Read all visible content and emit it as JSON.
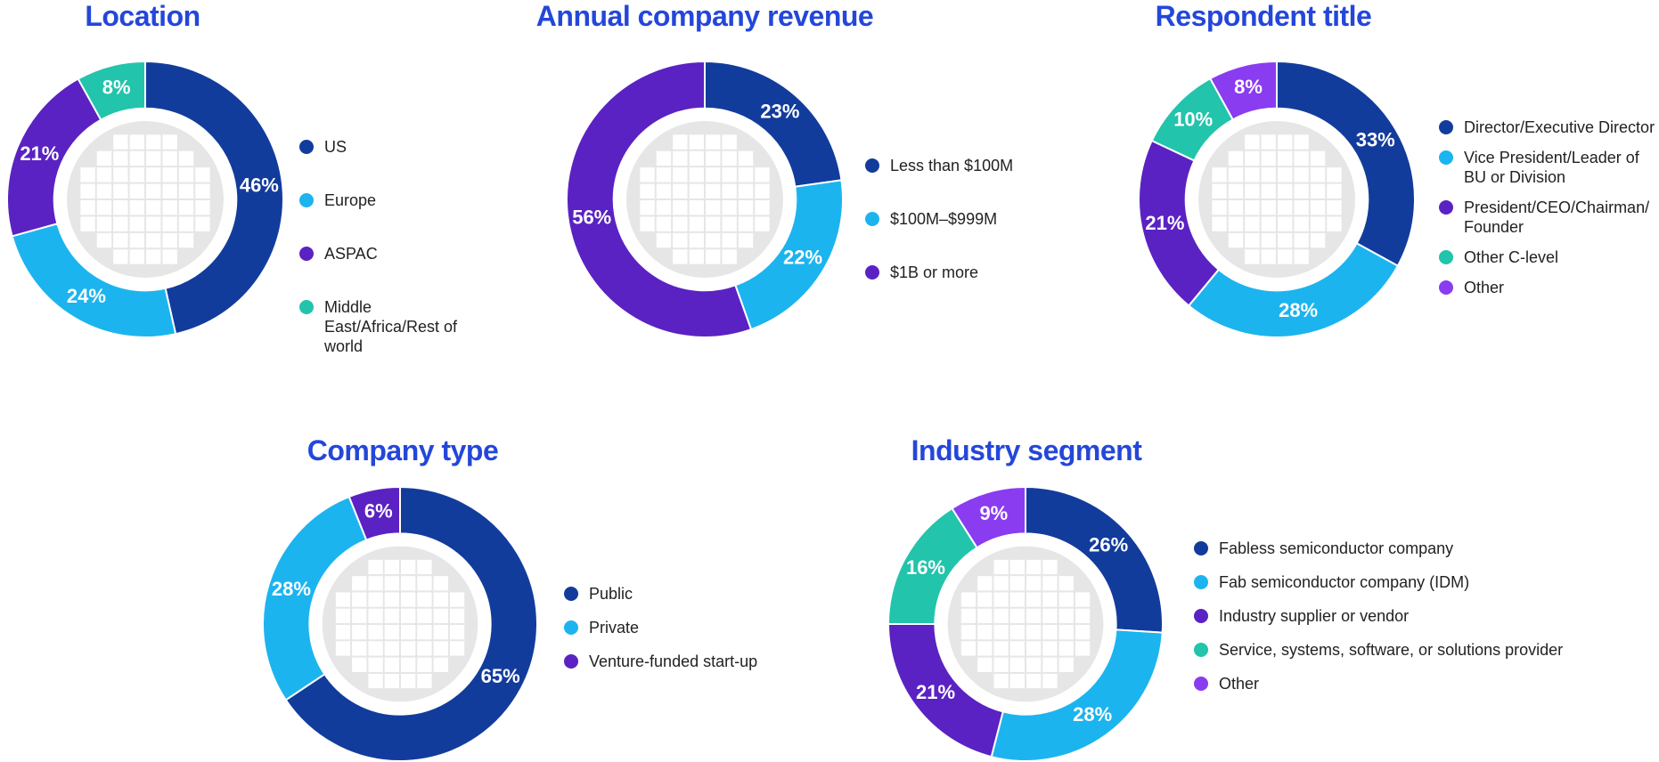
{
  "chart_data": [
    {
      "type": "donut",
      "title": "Location",
      "categories": [
        "US",
        "Europe",
        "ASPAC",
        "Middle East/Africa/Rest of world"
      ],
      "values": [
        46,
        24,
        21,
        8
      ],
      "value_labels": [
        "46%",
        "24%",
        "21%",
        "8%"
      ],
      "colors": [
        "#123c9c",
        "#1cb4ef",
        "#5a22c2",
        "#22c4ab"
      ]
    },
    {
      "type": "donut",
      "title": "Annual company revenue",
      "categories": [
        "Less than $100M",
        "$100M–$999M",
        "$1B or more"
      ],
      "values": [
        23,
        22,
        56
      ],
      "value_labels": [
        "23%",
        "22%",
        "56%"
      ],
      "colors": [
        "#123c9c",
        "#1cb4ef",
        "#5a22c2"
      ]
    },
    {
      "type": "donut",
      "title": "Respondent title",
      "categories": [
        "Director/Executive Director",
        "Vice President/Leader of BU or Division",
        "President/CEO/Chairman/ Founder",
        "Other C-level",
        "Other"
      ],
      "values": [
        33,
        28,
        21,
        10,
        8
      ],
      "value_labels": [
        "33%",
        "28%",
        "21%",
        "10%",
        "8%"
      ],
      "colors": [
        "#123c9c",
        "#1cb4ef",
        "#5a22c2",
        "#22c4ab",
        "#8a3cf0"
      ]
    },
    {
      "type": "donut",
      "title": "Company type",
      "categories": [
        "Public",
        "Private",
        "Venture-funded start-up"
      ],
      "values": [
        65,
        28,
        6
      ],
      "value_labels": [
        "65%",
        "28%",
        "6%"
      ],
      "colors": [
        "#123c9c",
        "#1cb4ef",
        "#5a22c2"
      ]
    },
    {
      "type": "donut",
      "title": "Industry segment",
      "categories": [
        "Fabless semiconductor company",
        "Fab semiconductor company (IDM)",
        "Industry supplier or vendor",
        "Service, systems, software, or solutions provider",
        "Other"
      ],
      "values": [
        26,
        28,
        21,
        16,
        9
      ],
      "value_labels": [
        "26%",
        "28%",
        "21%",
        "16%",
        "9%"
      ],
      "colors": [
        "#123c9c",
        "#1cb4ef",
        "#5a22c2",
        "#22c4ab",
        "#8a3cf0"
      ]
    }
  ]
}
